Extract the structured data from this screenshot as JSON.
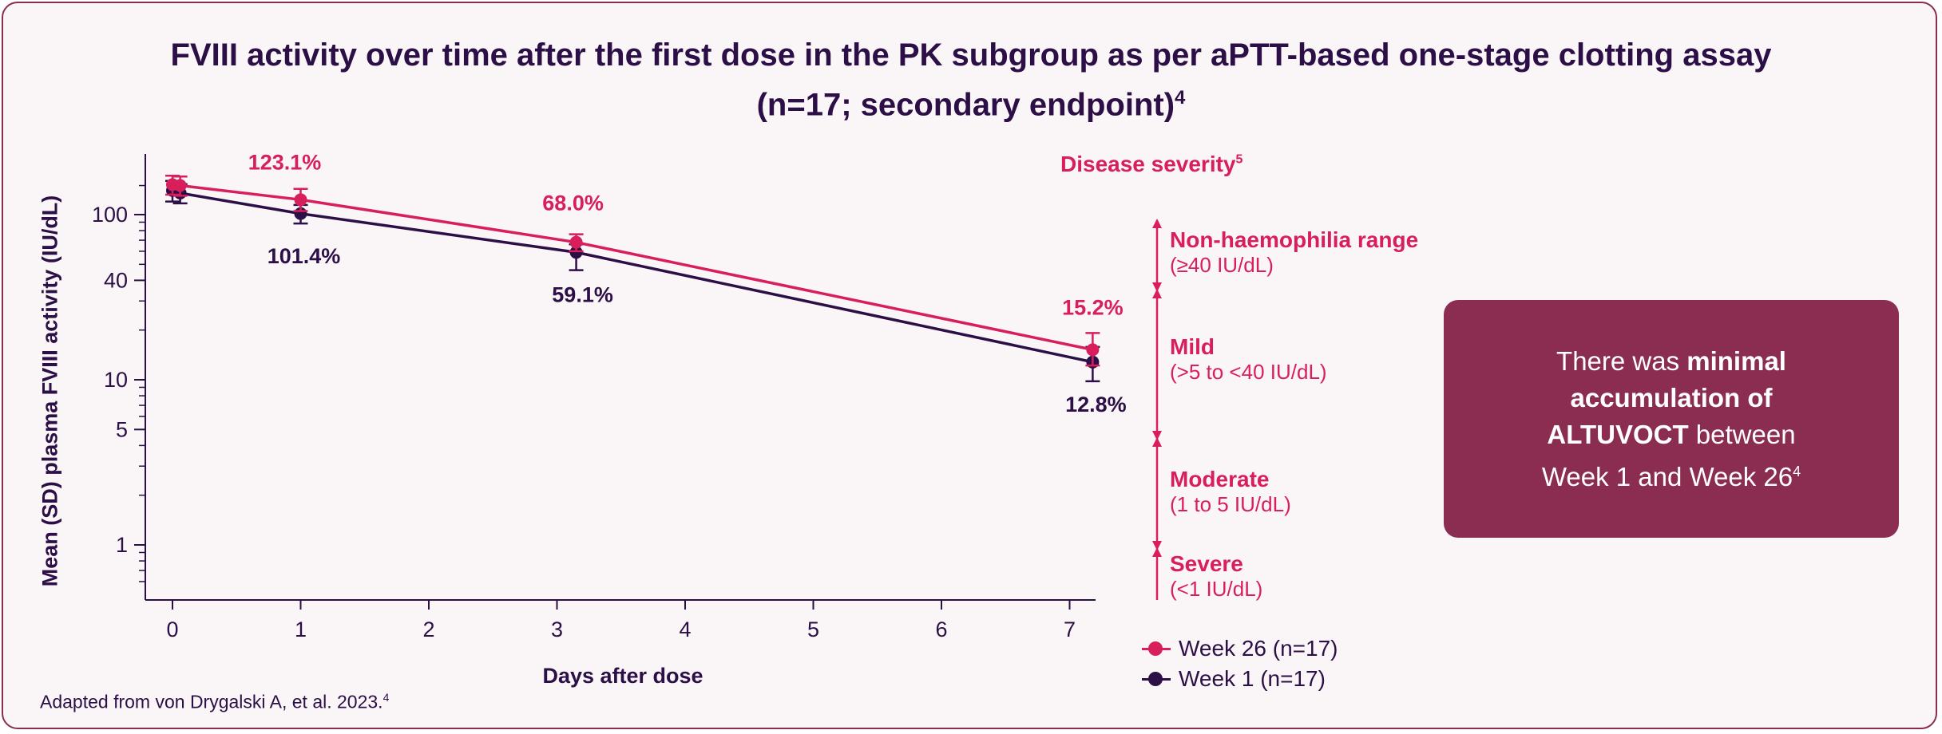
{
  "colors": {
    "week26": "#d81e5b",
    "week1": "#2b0f46",
    "frame": "#8a2d50",
    "callout_bg": "#8a2d50",
    "background": "#faf6f8"
  },
  "title_line1": "FVIII activity over time after the first dose in the PK subgroup as per aPTT-based one-stage clotting assay",
  "title_line2": "(n=17; secondary endpoint)",
  "title_sup": "4",
  "source_text": "Adapted from von Drygalski A, et al. 2023.",
  "source_sup": "4",
  "chart_data": {
    "type": "line",
    "xlabel": "Days after dose",
    "ylabel": "Mean (SD) plasma FVIII activity (IU/dL)",
    "y_scale": "log",
    "xlim": [
      -0.2,
      7.25
    ],
    "ylim": [
      0.5,
      170
    ],
    "x_ticks": [
      0,
      1,
      2,
      3,
      4,
      5,
      6,
      7
    ],
    "x_tick_labels": [
      "0",
      "1",
      "2",
      "3",
      "4",
      "5",
      "6",
      "7"
    ],
    "y_ticks": [
      1,
      5,
      10,
      40,
      100
    ],
    "y_tick_labels": [
      "1",
      "5",
      "10",
      "40",
      "100"
    ],
    "y_minor_ticks": [
      0.6,
      0.7,
      0.8,
      0.9,
      2,
      3,
      4,
      6,
      7,
      8,
      9,
      20,
      30,
      50,
      60,
      70,
      80,
      90,
      150
    ],
    "legend_position": "bottom-right",
    "series": [
      {
        "name": "Week 26 (n=17)",
        "color": "#d81e5b",
        "x": [
          0,
          0.06,
          1,
          3.15,
          7.18
        ],
        "y": [
          152,
          150,
          123.1,
          68.0,
          15.2
        ],
        "y_err_low": [
          20,
          20,
          18,
          8,
          3
        ],
        "y_err_high": [
          20,
          20,
          20,
          8,
          4
        ],
        "data_labels": [
          "",
          "",
          "123.1%",
          "68.0%",
          "15.2%"
        ]
      },
      {
        "name": "Week 1 (n=17)",
        "color": "#2b0f46",
        "x": [
          0,
          0.06,
          1,
          3.15,
          7.18
        ],
        "y": [
          140,
          135,
          101.4,
          59.1,
          12.8
        ],
        "y_err_low": [
          20,
          18,
          13,
          13,
          3
        ],
        "y_err_high": [
          20,
          18,
          13,
          7,
          3
        ],
        "data_labels": [
          "",
          "",
          "101.4%",
          "59.1%",
          "12.8%"
        ]
      }
    ]
  },
  "disease_severity": {
    "title": "Disease severity",
    "title_sup": "5",
    "bands": [
      {
        "name": "Non-haemophilia range",
        "range": "(≥40 IU/dL)",
        "low": 40,
        "high": 150
      },
      {
        "name": "Mild",
        "range": "(>5 to <40 IU/dL)",
        "low": 5,
        "high": 40
      },
      {
        "name": "Moderate",
        "range": "(1 to 5 IU/dL)",
        "low": 1,
        "high": 5
      },
      {
        "name": "Severe",
        "range": "(<1 IU/dL)",
        "low": 0.5,
        "high": 1
      }
    ]
  },
  "callout": {
    "part1": "There was ",
    "bold": "minimal accumulation of ALTUVOCT",
    "part2": " between Week 1 and Week 26",
    "sup": "4"
  }
}
